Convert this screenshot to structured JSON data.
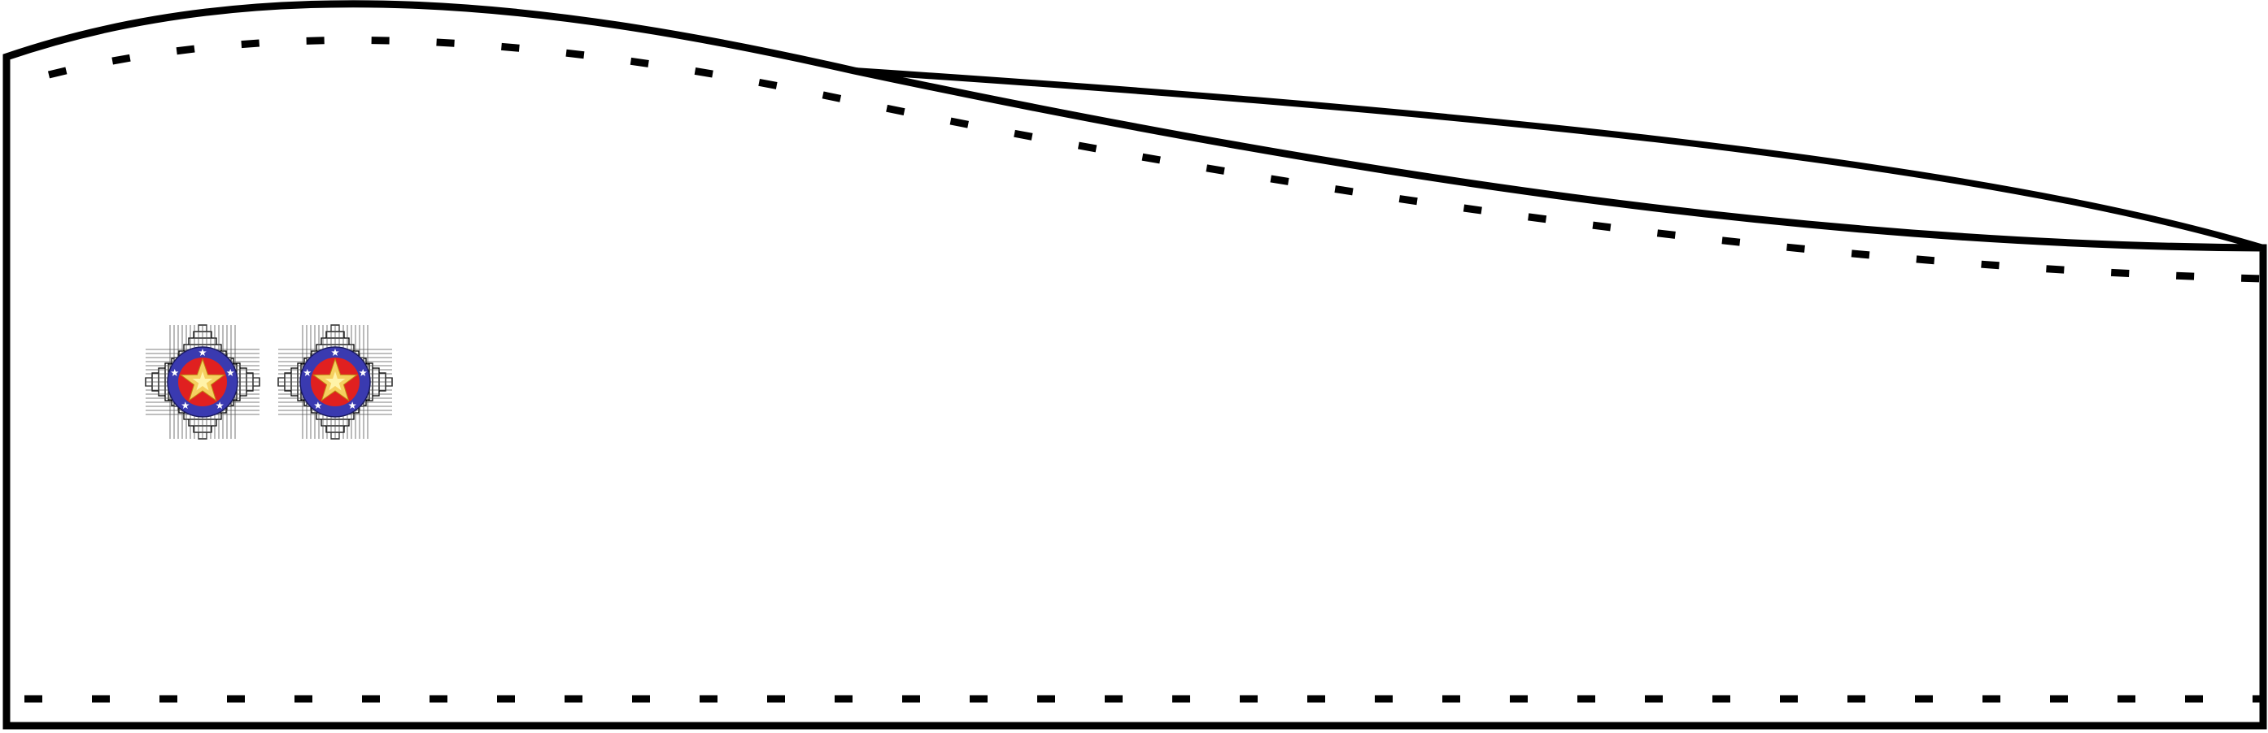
{
  "diagram": {
    "kind": "garment-pattern",
    "outline_color": "#000000",
    "background_color": "#ffffff",
    "seam_allowance_style": "dashed"
  },
  "insignia": {
    "count": 2,
    "symbol": "star-badge-icon",
    "colors": {
      "ray_fill": "#ffffff",
      "ray_stroke": "#000000",
      "ring": "#3a3ab0",
      "center": "#e02020",
      "star": "#f5d060",
      "star_highlight": "#fff3a8",
      "small_stars": "#ffffff"
    }
  }
}
